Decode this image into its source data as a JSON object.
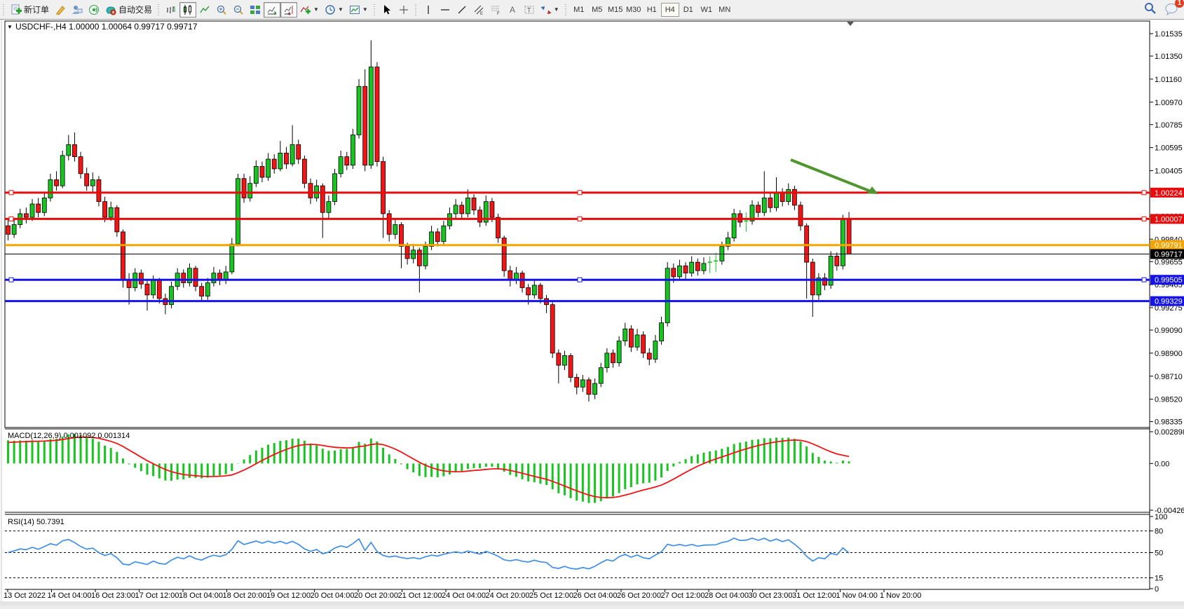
{
  "toolbar": {
    "new_order_label": "新订单",
    "autotrading_label": "自动交易",
    "timeframes": [
      "M1",
      "M5",
      "M15",
      "M30",
      "H1",
      "H4",
      "D1",
      "W1",
      "MN"
    ],
    "active_timeframe": "H4",
    "notification_count": "1"
  },
  "window": {
    "title": "USDCHF-,H4 1.00000 1.00064 0.99717 0.99717",
    "expand_glyph": "▼"
  },
  "chart_data": [
    {
      "type": "candlestick",
      "symbol": "USDCHF",
      "timeframe": "H4",
      "title": "USDCHF-,H4 1.00000 1.00064 0.99717 0.99717",
      "grid": false,
      "bull_color": "#17c420",
      "bear_color": "#f21515",
      "wick_color": "#000000",
      "y_ticks": [
        1.01535,
        1.0135,
        1.0116,
        1.0097,
        1.00785,
        1.00595,
        1.00405,
        1.0022,
        1.0003,
        0.9984,
        0.99655,
        0.99465,
        0.99275,
        0.9909,
        0.989,
        0.9871,
        0.9852,
        0.98335
      ],
      "price_range": {
        "top": 1.0164,
        "bottom": 0.9829
      },
      "current_price": 0.99717,
      "hlines": [
        {
          "price": 1.00224,
          "label": "1.00224",
          "color": "#e80b0b",
          "width": 3,
          "handles": true
        },
        {
          "price": 1.00007,
          "label": "1.00007",
          "color": "#e80b0b",
          "width": 3,
          "handles": true
        },
        {
          "price": 0.99791,
          "label": "0.99791",
          "color": "#f5a400",
          "width": 3,
          "handles": false
        },
        {
          "price": 0.99505,
          "label": "0.99505",
          "color": "#1414e8",
          "width": 3,
          "handles": true
        },
        {
          "price": 0.99329,
          "label": "0.99329",
          "color": "#1414e8",
          "width": 3,
          "handles": false
        }
      ],
      "current_price_label": {
        "text": "0.99717",
        "bg": "#000000",
        "fg": "#ffffff"
      },
      "x_labels": [
        "13 Oct 2022",
        "14 Oct 04:00",
        "16 Oct 23:00",
        "17 Oct 12:00",
        "18 Oct 04:00",
        "18 Oct 20:00",
        "19 Oct 12:00",
        "20 Oct 04:00",
        "20 Oct 20:00",
        "21 Oct 12:00",
        "24 Oct 04:00",
        "24 Oct 20:00",
        "25 Oct 12:00",
        "26 Oct 04:00",
        "26 Oct 20:00",
        "27 Oct 12:00",
        "28 Oct 04:00",
        "30 Oct 23:00",
        "31 Oct 12:00",
        "1 Nov 04:00",
        "1 Nov 20:00"
      ],
      "annotations": [
        {
          "type": "arrow",
          "from": [
            1128,
            228
          ],
          "to": [
            1253,
            277
          ],
          "color": "#4f9а2e-INVALID",
          "color_fix": "#4f962e",
          "width": 4
        }
      ],
      "candles": [
        [
          0.9995,
          1.0,
          0.9983,
          0.9988
        ],
        [
          0.9988,
          1.0001,
          0.9985,
          0.9996
        ],
        [
          0.9996,
          1.0009,
          0.9993,
          1.0005
        ],
        [
          1.0005,
          1.001,
          0.9997,
          1.0002
        ],
        [
          1.0002,
          1.0017,
          0.9999,
          1.0013
        ],
        [
          1.0013,
          1.0018,
          1.0002,
          1.0006
        ],
        [
          1.0006,
          1.0023,
          1.0003,
          1.0018
        ],
        [
          1.0018,
          1.0038,
          1.0015,
          1.0033
        ],
        [
          1.0033,
          1.004,
          1.0024,
          1.0028
        ],
        [
          1.0028,
          1.0057,
          1.0026,
          1.0053
        ],
        [
          1.0053,
          1.007,
          1.0049,
          1.0062
        ],
        [
          1.0062,
          1.0072,
          1.0048,
          1.0052
        ],
        [
          1.0052,
          1.0056,
          1.0034,
          1.0038
        ],
        [
          1.0038,
          1.0043,
          1.0024,
          1.0028
        ],
        [
          1.0028,
          1.0039,
          1.0023,
          1.0033
        ],
        [
          1.0033,
          1.0036,
          1.0011,
          1.0015
        ],
        [
          1.0015,
          1.0019,
          0.9998,
          1.0002
        ],
        [
          1.0002,
          1.0015,
          0.9999,
          1.001
        ],
        [
          1.001,
          1.0012,
          0.9986,
          0.999
        ],
        [
          0.999,
          0.9992,
          0.9944,
          0.995
        ],
        [
          0.995,
          0.9956,
          0.993,
          0.9944
        ],
        [
          0.9944,
          0.996,
          0.9941,
          0.9956
        ],
        [
          0.9956,
          0.9959,
          0.9943,
          0.9947
        ],
        [
          0.9947,
          0.995,
          0.9925,
          0.9938
        ],
        [
          0.9938,
          0.9954,
          0.9935,
          0.995
        ],
        [
          0.995,
          0.9952,
          0.9931,
          0.9935
        ],
        [
          0.9935,
          0.9939,
          0.9922,
          0.993
        ],
        [
          0.993,
          0.9949,
          0.9927,
          0.9945
        ],
        [
          0.9945,
          0.996,
          0.9942,
          0.9956
        ],
        [
          0.9956,
          0.9959,
          0.9944,
          0.9948
        ],
        [
          0.9948,
          0.9964,
          0.9945,
          0.996
        ],
        [
          0.996,
          0.9962,
          0.9941,
          0.9945
        ],
        [
          0.9945,
          0.9948,
          0.9933,
          0.9937
        ],
        [
          0.9937,
          0.9952,
          0.9934,
          0.9948
        ],
        [
          0.9948,
          0.9961,
          0.9945,
          0.9956
        ],
        [
          0.9956,
          0.9959,
          0.9946,
          0.995
        ],
        [
          0.995,
          0.9962,
          0.9947,
          0.9957
        ],
        [
          0.9957,
          0.9985,
          0.9955,
          0.998
        ],
        [
          0.998,
          1.0038,
          0.9978,
          1.0034
        ],
        [
          1.0034,
          1.0038,
          1.0014,
          1.0018
        ],
        [
          1.0018,
          1.0036,
          1.0015,
          1.003
        ],
        [
          1.003,
          1.0049,
          1.0027,
          1.0044
        ],
        [
          1.0044,
          1.0048,
          1.0031,
          1.0035
        ],
        [
          1.0035,
          1.0055,
          1.0032,
          1.005
        ],
        [
          1.005,
          1.0054,
          1.0038,
          1.0042
        ],
        [
          1.0042,
          1.0065,
          1.004,
          1.0055
        ],
        [
          1.0055,
          1.006,
          1.0042,
          1.0046
        ],
        [
          1.0046,
          1.0078,
          1.0044,
          1.0062
        ],
        [
          1.0062,
          1.0066,
          1.0046,
          1.005
        ],
        [
          1.005,
          1.0053,
          1.0026,
          1.003
        ],
        [
          1.003,
          1.0034,
          1.0013,
          1.0018
        ],
        [
          1.0018,
          1.0033,
          1.0015,
          1.0028
        ],
        [
          1.0028,
          1.003,
          0.9985,
          1.0006
        ],
        [
          1.0006,
          1.002,
          1.0001,
          1.0015
        ],
        [
          1.0015,
          1.0042,
          1.0012,
          1.0038
        ],
        [
          1.0038,
          1.0057,
          1.0035,
          1.0052
        ],
        [
          1.0052,
          1.0056,
          1.0041,
          1.0045
        ],
        [
          1.0045,
          1.0075,
          1.0042,
          1.007
        ],
        [
          1.007,
          1.0116,
          1.0067,
          1.011
        ],
        [
          1.011,
          1.0124,
          1.004,
          1.0045
        ],
        [
          1.0045,
          1.0148,
          1.0042,
          1.0126
        ],
        [
          1.0126,
          1.013,
          1.0044,
          1.0048
        ],
        [
          1.0048,
          1.0052,
          0.9985,
          1.0005
        ],
        [
          1.0005,
          1.0008,
          0.9982,
          0.9988
        ],
        [
          0.9988,
          1.0001,
          0.9984,
          0.9996
        ],
        [
          0.9996,
          0.9998,
          0.996,
          0.9978
        ],
        [
          0.9978,
          0.9981,
          0.9963,
          0.9968
        ],
        [
          0.9968,
          0.998,
          0.9964,
          0.9975
        ],
        [
          0.9975,
          0.9977,
          0.994,
          0.9962
        ],
        [
          0.9962,
          0.9982,
          0.9959,
          0.9978
        ],
        [
          0.9978,
          0.9995,
          0.9975,
          0.999
        ],
        [
          0.999,
          0.9993,
          0.9978,
          0.9982
        ],
        [
          0.9982,
          0.9999,
          0.9979,
          0.9995
        ],
        [
          0.9995,
          1.001,
          0.9992,
          1.0005
        ],
        [
          1.0005,
          1.0017,
          1.0001,
          1.0012
        ],
        [
          1.0012,
          1.0015,
          1.0001,
          1.0005
        ],
        [
          1.0005,
          1.0025,
          1.0002,
          1.0018
        ],
        [
          1.0018,
          1.0021,
          1.0004,
          1.0008
        ],
        [
          1.0008,
          1.0011,
          0.9994,
          0.9998
        ],
        [
          0.9998,
          1.002,
          0.9995,
          1.0015
        ],
        [
          1.0015,
          1.0018,
          0.9998,
          1.0002
        ],
        [
          1.0002,
          1.0005,
          0.9981,
          0.9985
        ],
        [
          0.9985,
          0.9987,
          0.9953,
          0.9958
        ],
        [
          0.9958,
          0.9962,
          0.9945,
          0.995
        ],
        [
          0.995,
          0.9961,
          0.9947,
          0.9956
        ],
        [
          0.9956,
          0.9958,
          0.994,
          0.9944
        ],
        [
          0.9944,
          0.9947,
          0.993,
          0.9938
        ],
        [
          0.9938,
          0.995,
          0.9935,
          0.9946
        ],
        [
          0.9946,
          0.9948,
          0.9931,
          0.9935
        ],
        [
          0.9935,
          0.9938,
          0.9923,
          0.993
        ],
        [
          0.993,
          0.9932,
          0.9886,
          0.989
        ],
        [
          0.989,
          0.9893,
          0.9865,
          0.988
        ],
        [
          0.988,
          0.9892,
          0.9876,
          0.9888
        ],
        [
          0.9888,
          0.989,
          0.9866,
          0.987
        ],
        [
          0.987,
          0.9873,
          0.9856,
          0.9862
        ],
        [
          0.9862,
          0.9872,
          0.9858,
          0.9868
        ],
        [
          0.9868,
          0.987,
          0.985,
          0.9856
        ],
        [
          0.9856,
          0.9869,
          0.9852,
          0.9865
        ],
        [
          0.9865,
          0.9882,
          0.9862,
          0.9878
        ],
        [
          0.9878,
          0.9894,
          0.9874,
          0.989
        ],
        [
          0.989,
          0.9893,
          0.9878,
          0.9882
        ],
        [
          0.9882,
          0.9904,
          0.9879,
          0.99
        ],
        [
          0.99,
          0.9915,
          0.9896,
          0.991
        ],
        [
          0.991,
          0.9913,
          0.9891,
          0.9895
        ],
        [
          0.9895,
          0.991,
          0.9892,
          0.9905
        ],
        [
          0.9905,
          0.9908,
          0.9886,
          0.989
        ],
        [
          0.989,
          0.9894,
          0.988,
          0.9885
        ],
        [
          0.9885,
          0.9905,
          0.9882,
          0.99
        ],
        [
          0.99,
          0.992,
          0.9897,
          0.9915
        ],
        [
          0.9915,
          0.9965,
          0.9912,
          0.996
        ],
        [
          0.996,
          0.9964,
          0.9948,
          0.9953
        ],
        [
          0.9953,
          0.9967,
          0.995,
          0.9962
        ],
        [
          0.9962,
          0.9965,
          0.9951,
          0.9956
        ],
        [
          0.9956,
          0.997,
          0.9953,
          0.9965
        ],
        [
          0.9965,
          0.9968,
          0.9954,
          0.9958
        ],
        [
          0.9958,
          0.9969,
          0.9955,
          0.9964
        ],
        [
          0.9964,
          0.997,
          0.9956,
          0.9965
        ],
        [
          0.9965,
          0.9973,
          0.9957,
          0.9966
        ],
        [
          0.9966,
          0.9982,
          0.9963,
          0.9978
        ],
        [
          0.9978,
          0.999,
          0.9975,
          0.9985
        ],
        [
          0.9985,
          1.0009,
          0.9982,
          1.0005
        ],
        [
          1.0005,
          1.0008,
          0.9994,
          0.9998
        ],
        [
          0.9998,
          1.0006,
          0.999,
          0.9999
        ],
        [
          0.9999,
          1.0016,
          0.9996,
          1.0012
        ],
        [
          1.0012,
          1.0015,
          1.0002,
          1.0006
        ],
        [
          1.0006,
          1.004,
          1.0003,
          1.0018
        ],
        [
          1.0018,
          1.0022,
          1.0006,
          1.001
        ],
        [
          1.001,
          1.0035,
          1.0007,
          1.0022
        ],
        [
          1.0022,
          1.0026,
          1.0011,
          1.0015
        ],
        [
          1.0015,
          1.003,
          1.0012,
          1.0025
        ],
        [
          1.0025,
          1.0028,
          1.0008,
          1.0012
        ],
        [
          1.0012,
          1.0015,
          0.9991,
          0.9995
        ],
        [
          0.9995,
          0.9997,
          0.9935,
          0.9965
        ],
        [
          0.9965,
          0.9968,
          0.992,
          0.9938
        ],
        [
          0.9938,
          0.9956,
          0.9934,
          0.9952
        ],
        [
          0.9952,
          0.9956,
          0.9942,
          0.9946
        ],
        [
          0.9946,
          0.9974,
          0.9943,
          0.997
        ],
        [
          0.997,
          0.9973,
          0.9958,
          0.9962
        ],
        [
          0.9962,
          1.0004,
          0.9959,
          1.0
        ],
        [
          1.0,
          1.00064,
          0.99717,
          0.99717
        ]
      ]
    },
    {
      "type": "macd",
      "label": "MACD(12,26,9)",
      "params": [
        12,
        26,
        9
      ],
      "values_display": "0.001092 0.001314",
      "values": [
        0.001092,
        0.001314
      ],
      "y_ticks": [
        "0.002898",
        "0.00",
        "-0.004261"
      ],
      "range": {
        "max": 0.002898,
        "min": -0.004261
      },
      "hist_color": "#17c420",
      "signal_color": "#f21515",
      "source": "computed from candles closes (EMA12-EMA26, signal EMA9)"
    },
    {
      "type": "rsi",
      "label": "RSI(14)",
      "params": [
        14
      ],
      "value": 50.7391,
      "value_display": "50.7391",
      "levels": [
        80,
        50,
        15
      ],
      "y_ticks": [
        "100",
        "80",
        "50",
        "15",
        "0"
      ],
      "range": {
        "max": 100,
        "min": 0
      },
      "line_color": "#3f8fe8",
      "source": "computed from candles closes, Wilder RSI(14)"
    }
  ]
}
